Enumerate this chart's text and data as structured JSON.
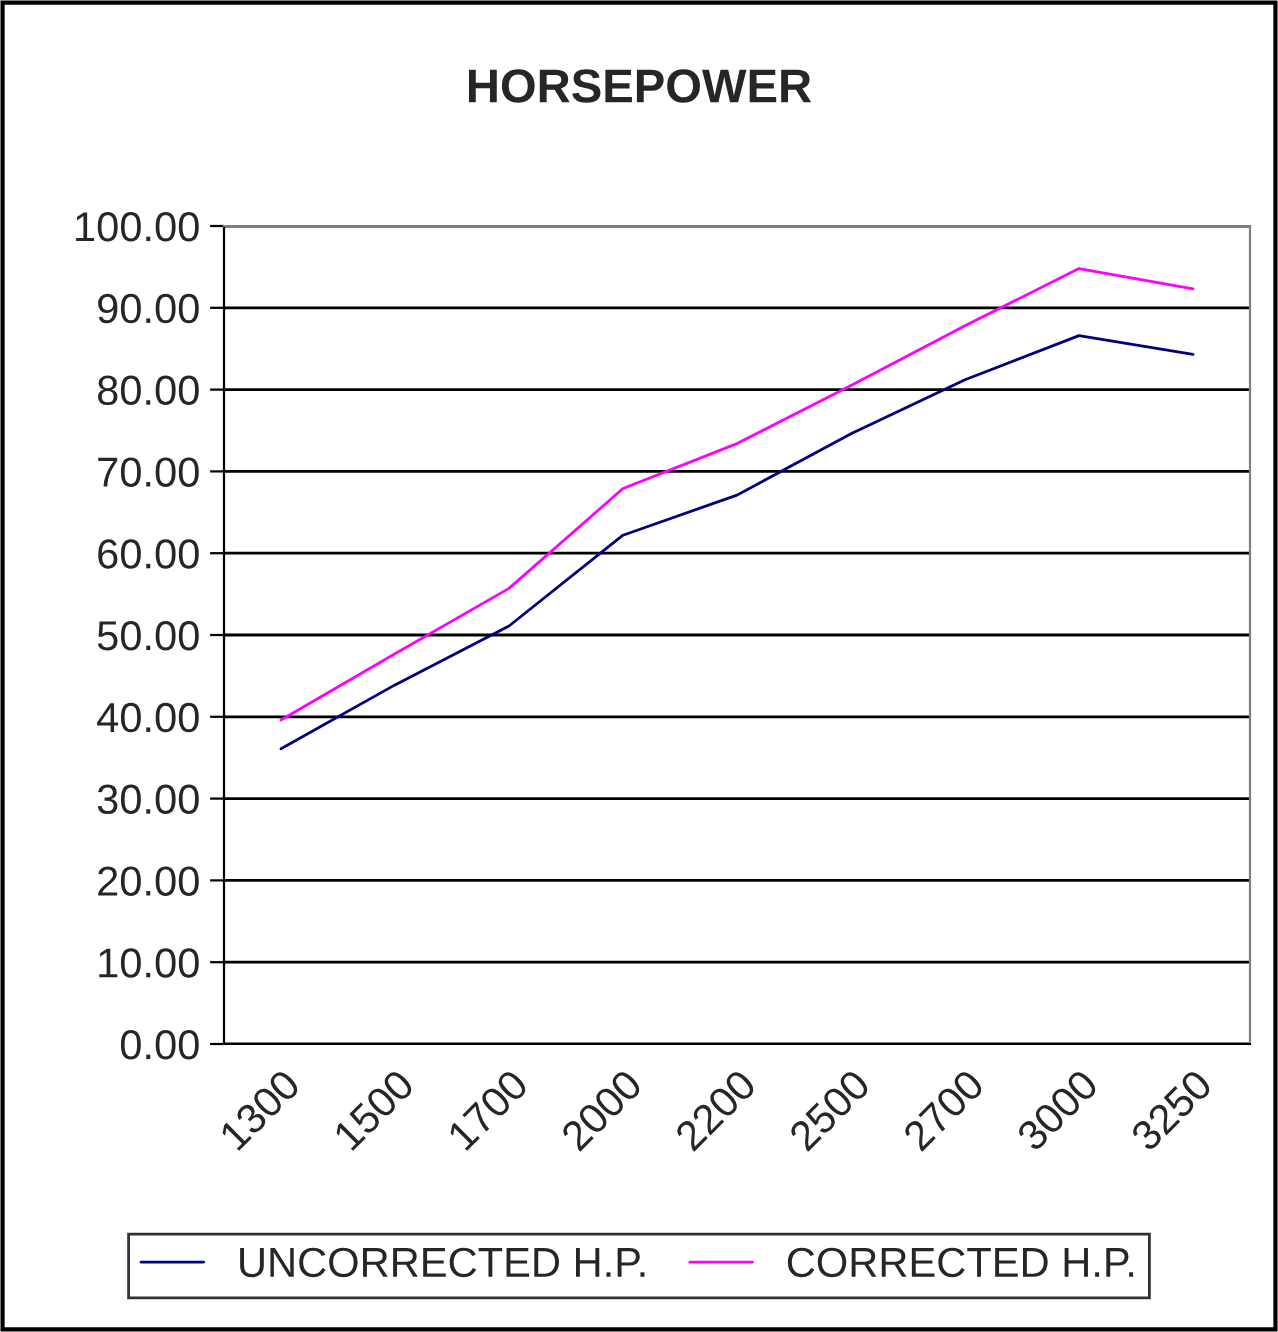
{
  "chart_data": {
    "type": "line",
    "title": "HORSEPOWER",
    "categories": [
      "1300",
      "1500",
      "1700",
      "2000",
      "2200",
      "2500",
      "2700",
      "3000",
      "3250"
    ],
    "series": [
      {
        "name": "UNCORRECTED H.P.",
        "color": "#000080",
        "values": [
          36.1,
          43.9,
          51.1,
          62.2,
          67.1,
          74.6,
          81.2,
          86.6,
          84.3
        ]
      },
      {
        "name": "CORRECTED H.P.",
        "color": "#ff00ff",
        "values": [
          39.6,
          47.7,
          55.7,
          67.9,
          73.4,
          80.5,
          87.8,
          94.8,
          92.3
        ]
      }
    ],
    "ylim": [
      0,
      100
    ],
    "yticks": [
      {
        "value": 0,
        "label": "0.00"
      },
      {
        "value": 10,
        "label": "10.00"
      },
      {
        "value": 20,
        "label": "20.00"
      },
      {
        "value": 30,
        "label": "30.00"
      },
      {
        "value": 40,
        "label": "40.00"
      },
      {
        "value": 50,
        "label": "50.00"
      },
      {
        "value": 60,
        "label": "60.00"
      },
      {
        "value": 70,
        "label": "70.00"
      },
      {
        "value": 80,
        "label": "80.00"
      },
      {
        "value": 90,
        "label": "90.00"
      },
      {
        "value": 100,
        "label": "100.00"
      }
    ],
    "grid": "y",
    "legend": "bottom",
    "marker": "none",
    "line_style": "solid"
  }
}
